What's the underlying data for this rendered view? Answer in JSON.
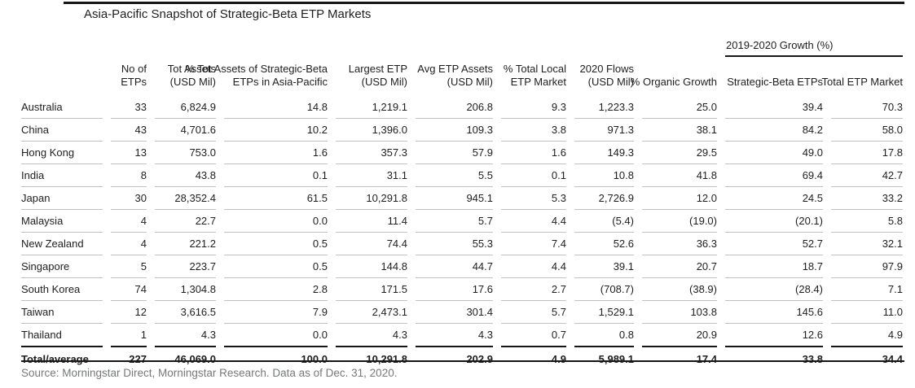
{
  "title": "Asia-Pacific Snapshot of Strategic-Beta ETP Markets",
  "source_note": "Source: Morningstar Direct, Morningstar Research. Data as of Dec. 31, 2020.",
  "colors": {
    "text": "#1e1e1e",
    "dark_rule": "#161616",
    "row_border": "#c2c2c2",
    "source_text": "#77787a"
  },
  "table": {
    "group_header": "2019-2020 Growth (%)",
    "columns": [
      {
        "l1": "",
        "l2": ""
      },
      {
        "l1": "No of",
        "l2": "ETPs"
      },
      {
        "l1": "Tot Assets",
        "l2": "(USD Mil)"
      },
      {
        "l1": "% Tot Assets of Strategic-Beta",
        "l2": "ETPs in Asia-Pacific"
      },
      {
        "l1": "Largest ETP",
        "l2": "(USD Mil)"
      },
      {
        "l1": "Avg ETP Assets",
        "l2": "(USD Mil)"
      },
      {
        "l1": "% Total Local",
        "l2": "ETP Market"
      },
      {
        "l1": "2020 Flows",
        "l2": "(USD Mil)"
      },
      {
        "l1": "",
        "l2": "% Organic Growth"
      },
      {
        "l1": "",
        "l2": "Strategic-Beta ETPs"
      },
      {
        "l1": "",
        "l2": "Total ETP Market"
      }
    ],
    "rows": [
      {
        "country": "Australia",
        "values": [
          "33",
          "6,824.9",
          "14.8",
          "1,219.1",
          "206.8",
          "9.3",
          "1,223.3",
          "25.0",
          "39.4",
          "70.3"
        ]
      },
      {
        "country": "China",
        "values": [
          "43",
          "4,701.6",
          "10.2",
          "1,396.0",
          "109.3",
          "3.8",
          "971.3",
          "38.1",
          "84.2",
          "58.0"
        ]
      },
      {
        "country": "Hong Kong",
        "values": [
          "13",
          "753.0",
          "1.6",
          "357.3",
          "57.9",
          "1.6",
          "149.3",
          "29.5",
          "49.0",
          "17.8"
        ]
      },
      {
        "country": "India",
        "values": [
          "8",
          "43.8",
          "0.1",
          "31.1",
          "5.5",
          "0.1",
          "10.8",
          "41.8",
          "69.4",
          "42.7"
        ]
      },
      {
        "country": "Japan",
        "values": [
          "30",
          "28,352.4",
          "61.5",
          "10,291.8",
          "945.1",
          "5.3",
          "2,726.9",
          "12.0",
          "24.5",
          "33.2"
        ]
      },
      {
        "country": "Malaysia",
        "values": [
          "4",
          "22.7",
          "0.0",
          "11.4",
          "5.7",
          "4.4",
          "(5.4)",
          "(19.0)",
          "(20.1)",
          "5.8"
        ]
      },
      {
        "country": "New Zealand",
        "values": [
          "4",
          "221.2",
          "0.5",
          "74.4",
          "55.3",
          "7.4",
          "52.6",
          "36.3",
          "52.7",
          "32.1"
        ]
      },
      {
        "country": "Singapore",
        "values": [
          "5",
          "223.7",
          "0.5",
          "144.8",
          "44.7",
          "4.4",
          "39.1",
          "20.7",
          "18.7",
          "97.9"
        ]
      },
      {
        "country": "South Korea",
        "values": [
          "74",
          "1,304.8",
          "2.8",
          "171.5",
          "17.6",
          "2.7",
          "(708.7)",
          "(38.9)",
          "(28.4)",
          "7.1"
        ]
      },
      {
        "country": "Taiwan",
        "values": [
          "12",
          "3,616.5",
          "7.9",
          "2,473.1",
          "301.4",
          "5.7",
          "1,529.1",
          "103.8",
          "145.6",
          "11.0"
        ]
      },
      {
        "country": "Thailand",
        "values": [
          "1",
          "4.3",
          "0.0",
          "4.3",
          "4.3",
          "0.7",
          "0.8",
          "20.9",
          "12.6",
          "4.9"
        ]
      }
    ],
    "total_row": {
      "country": "Total/average",
      "values": [
        "227",
        "46,069.0",
        "100.0",
        "10,291.8",
        "202.9",
        "4.9",
        "5,989.1",
        "17.4",
        "33.8",
        "34.4"
      ]
    }
  }
}
